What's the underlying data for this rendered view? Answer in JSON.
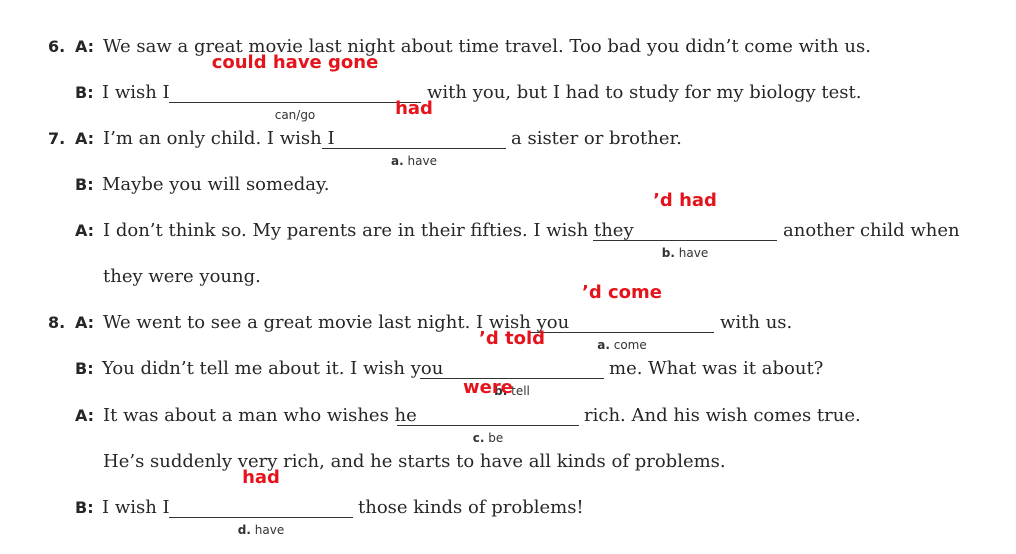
{
  "items": {
    "q6": {
      "number": "6.",
      "a_speaker": "A:",
      "a_text": "We saw a great movie last night about time travel. Too bad you didn’t come with us.",
      "b_speaker": "B:",
      "b_before": "I wish I",
      "b_answer": "could have gone",
      "b_cue": "can/go",
      "b_after": "with you, but I had to study for my biology test."
    },
    "q7": {
      "number": "7.",
      "a1_speaker": "A:",
      "a1_before": "I’m an only child. I wish I",
      "a1_answer": "had",
      "a1_cue_letter": "a.",
      "a1_cue_verb": "have",
      "a1_after": "a sister or brother.",
      "b_speaker": "B:",
      "b_text": "Maybe you will someday.",
      "a2_speaker": "A:",
      "a2_before": "I don’t think so. My parents are in their fifties. I wish they",
      "a2_answer": "’d had",
      "a2_cue_letter": "b.",
      "a2_cue_verb": "have",
      "a2_after": "another child when",
      "a2_cont": "they were young."
    },
    "q8": {
      "number": "8.",
      "a1_speaker": "A:",
      "a1_before": "We went to see a great movie last night. I wish you",
      "a1_answer": "’d come",
      "a1_cue_letter": "a.",
      "a1_cue_verb": "come",
      "a1_after": "with us.",
      "b1_speaker": "B:",
      "b1_before": "You didn’t tell me about it. I wish you",
      "b1_answer": "’d told",
      "b1_cue_letter": "b.",
      "b1_cue_verb": "tell",
      "b1_after": "me. What was it about?",
      "a2_speaker": "A:",
      "a2_before": "It was about a man who wishes he",
      "a2_answer": "were",
      "a2_cue_letter": "c.",
      "a2_cue_verb": "be",
      "a2_after": "rich. And his wish comes true.",
      "a2_cont": "He’s suddenly very rich, and he starts to have all kinds of problems.",
      "b2_speaker": "B:",
      "b2_before": "I wish I",
      "b2_answer": "had",
      "b2_cue_letter": "d.",
      "b2_cue_verb": "have",
      "b2_after": "those kinds of problems!"
    }
  }
}
